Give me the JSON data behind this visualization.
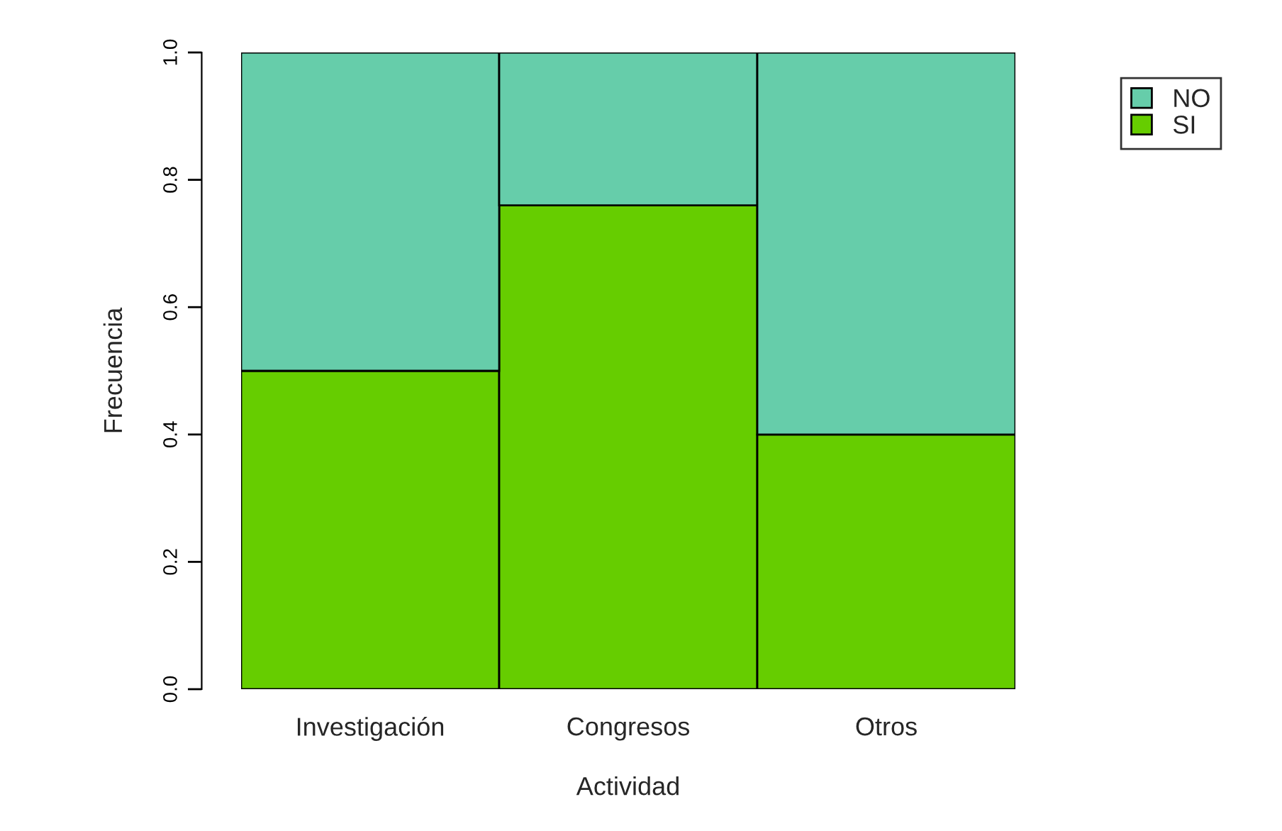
{
  "chart_data": {
    "type": "bar",
    "stacked": true,
    "xlabel": "Actividad",
    "ylabel": "Frecuencia",
    "categories": [
      "Investigación",
      "Congresos",
      "Otros"
    ],
    "series": [
      {
        "name": "SI",
        "color": "#66cd00",
        "values": [
          0.5,
          0.76,
          0.4
        ]
      },
      {
        "name": "NO",
        "color": "#66cdaa",
        "values": [
          0.5,
          0.24,
          0.6
        ]
      }
    ],
    "ylim": [
      0,
      1
    ],
    "yticks": [
      "0.0",
      0.2,
      0.4,
      0.6,
      0.8,
      "1.0"
    ],
    "legend": "top right"
  }
}
